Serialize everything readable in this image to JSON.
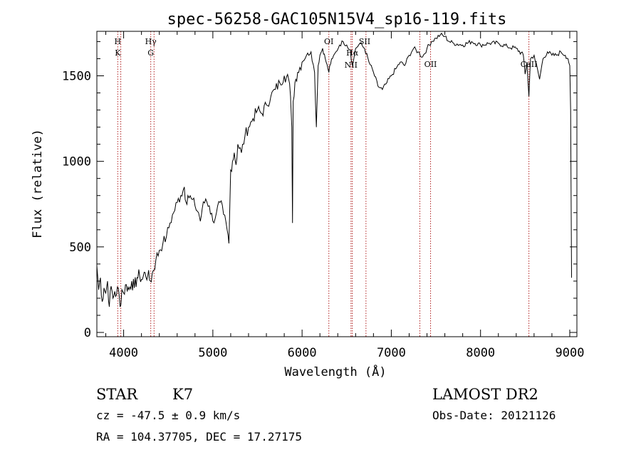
{
  "chart_data": {
    "type": "line",
    "title": "spec-56258-GAC105N15V4_sp16-119.fits",
    "xlabel": "Wavelength (Å)",
    "ylabel": "Flux (relative)",
    "xlim": [
      3700,
      9080
    ],
    "ylim": [
      -25,
      1760
    ],
    "xticks": [
      4000,
      5000,
      6000,
      7000,
      8000,
      9000
    ],
    "yticks": [
      0,
      500,
      1000,
      1500
    ],
    "xtick_labels": [
      "4000",
      "5000",
      "6000",
      "7000",
      "8000",
      "9000"
    ],
    "ytick_labels": [
      "0",
      "500",
      "1000",
      "1500"
    ],
    "grid": false,
    "series": [
      {
        "color": "#000000",
        "x": [
          3700,
          3720,
          3740,
          3760,
          3780,
          3800,
          3820,
          3840,
          3860,
          3880,
          3900,
          3920,
          3940,
          3960,
          3980,
          4000,
          4030,
          4060,
          4090,
          4120,
          4150,
          4180,
          4210,
          4240,
          4270,
          4300,
          4330,
          4360,
          4400,
          4440,
          4480,
          4520,
          4560,
          4600,
          4640,
          4680,
          4700,
          4720,
          4760,
          4800,
          4840,
          4860,
          4880,
          4920,
          4960,
          5000,
          5040,
          5080,
          5120,
          5160,
          5180,
          5200,
          5220,
          5240,
          5260,
          5280,
          5320,
          5360,
          5400,
          5450,
          5500,
          5550,
          5600,
          5650,
          5700,
          5750,
          5800,
          5850,
          5870,
          5885,
          5893,
          5900,
          5920,
          5950,
          6000,
          6050,
          6100,
          6140,
          6160,
          6180,
          6200,
          6230,
          6260,
          6290,
          6300,
          6310,
          6340,
          6380,
          6420,
          6460,
          6500,
          6540,
          6563,
          6580,
          6600,
          6650,
          6700,
          6750,
          6800,
          6850,
          6900,
          6950,
          7000,
          7050,
          7100,
          7150,
          7200,
          7250,
          7300,
          7350,
          7400,
          7450,
          7500,
          7550,
          7600,
          7650,
          7700,
          7800,
          7900,
          8000,
          8100,
          8200,
          8300,
          8400,
          8480,
          8500,
          8520,
          8542,
          8560,
          8600,
          8662,
          8700,
          8750,
          8800,
          8850,
          8900,
          8950,
          8980,
          9000,
          9010,
          9020
        ],
        "y": [
          390,
          250,
          320,
          180,
          260,
          230,
          300,
          150,
          270,
          200,
          240,
          220,
          260,
          150,
          250,
          230,
          280,
          250,
          300,
          260,
          320,
          330,
          310,
          350,
          330,
          300,
          360,
          420,
          480,
          520,
          560,
          640,
          700,
          760,
          800,
          850,
          760,
          800,
          780,
          740,
          700,
          650,
          720,
          780,
          740,
          650,
          700,
          760,
          690,
          600,
          520,
          950,
          1000,
          1050,
          980,
          1100,
          1050,
          1150,
          1200,
          1250,
          1300,
          1280,
          1330,
          1380,
          1420,
          1460,
          1500,
          1480,
          1380,
          1200,
          640,
          1350,
          1460,
          1520,
          1580,
          1620,
          1640,
          1520,
          1200,
          1560,
          1620,
          1660,
          1600,
          1540,
          1520,
          1560,
          1600,
          1640,
          1680,
          1700,
          1680,
          1650,
          1560,
          1600,
          1660,
          1690,
          1660,
          1580,
          1520,
          1440,
          1420,
          1460,
          1500,
          1540,
          1580,
          1560,
          1620,
          1660,
          1640,
          1610,
          1660,
          1700,
          1720,
          1740,
          1730,
          1700,
          1690,
          1680,
          1700,
          1680,
          1690,
          1690,
          1670,
          1660,
          1620,
          1510,
          1580,
          1380,
          1600,
          1620,
          1480,
          1600,
          1640,
          1620,
          1620,
          1640,
          1620,
          1600,
          1560,
          1300,
          320
        ]
      }
    ],
    "line_markers": [
      {
        "x": 3934,
        "labels": [
          "H",
          "K"
        ]
      },
      {
        "x": 3968,
        "labels": []
      },
      {
        "x": 4304,
        "labels": [
          "Hγ",
          "G"
        ]
      },
      {
        "x": 4341,
        "labels": []
      },
      {
        "x": 6300,
        "labels": [
          "OI"
        ]
      },
      {
        "x": 6548,
        "labels": [
          "NII"
        ]
      },
      {
        "x": 6563,
        "labels": [
          "Hα"
        ]
      },
      {
        "x": 6716,
        "labels": [
          "SII"
        ]
      },
      {
        "x": 7320,
        "labels": []
      },
      {
        "x": 7440,
        "labels": [
          "OII"
        ]
      },
      {
        "x": 8542,
        "labels": [
          "CaII"
        ]
      }
    ]
  },
  "info": {
    "object_class": "STAR",
    "subclass": "K7",
    "redshift_line": "cz = -47.5 ± 0.9 km/s",
    "coords_line": "RA = 104.37705, DEC =  17.27175",
    "survey": "LAMOST DR2",
    "obs_date_line": "Obs-Date: 20121126"
  }
}
